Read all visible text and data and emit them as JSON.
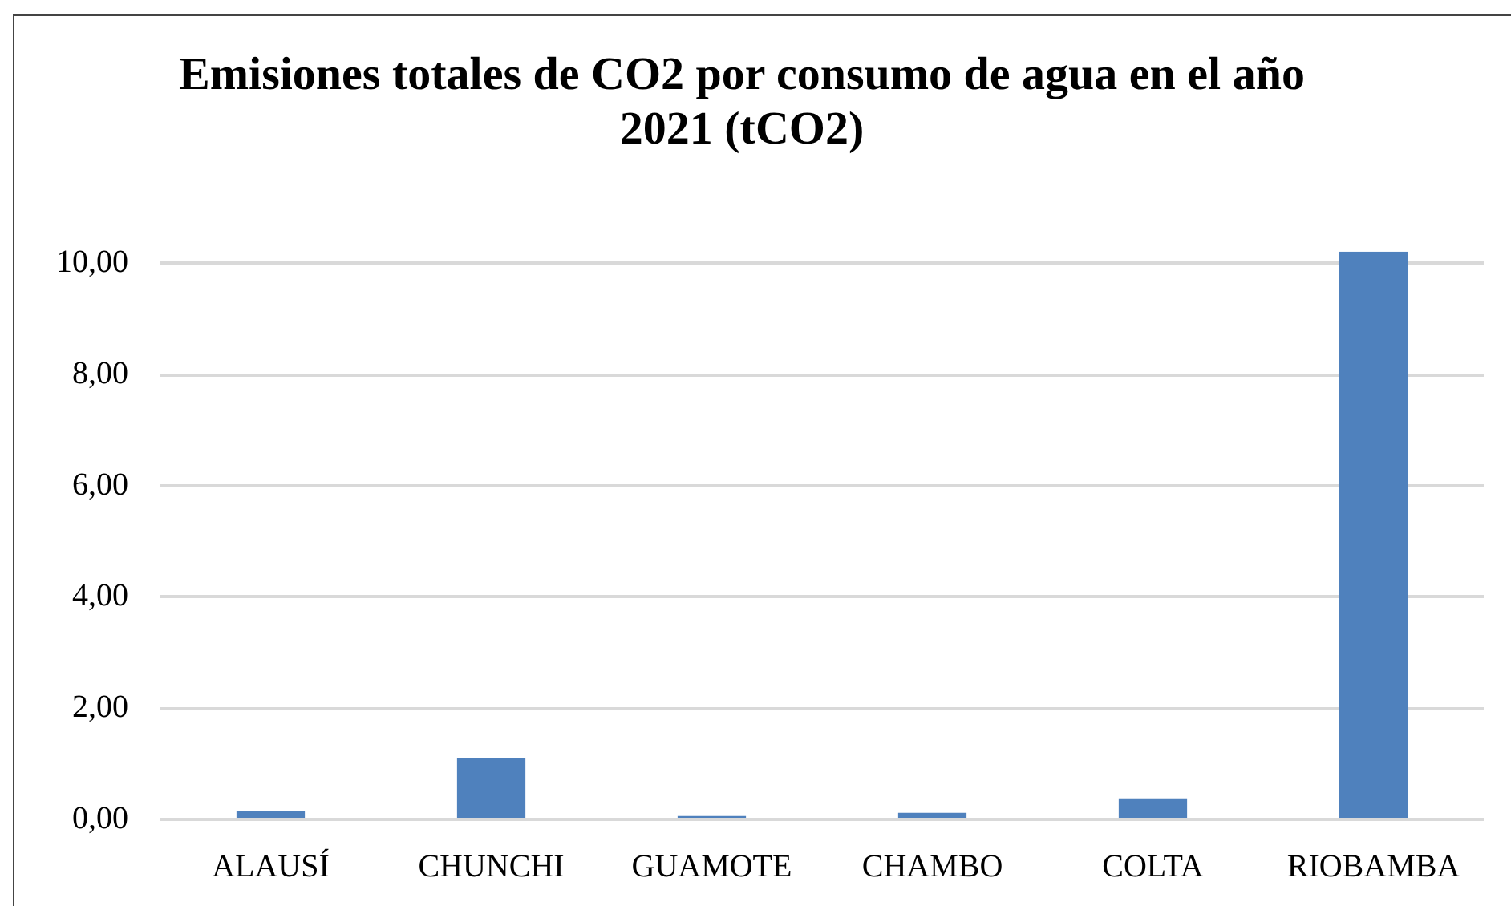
{
  "chart_data": {
    "type": "bar",
    "title": "Emisiones totales de CO2 por consumo de agua en el año 2021 (tCO2)",
    "categories": [
      "ALAUSÍ",
      "CHUNCHI",
      "GUAMOTE",
      "CHAMBO",
      "COLTA",
      "RIOBAMBA"
    ],
    "values": [
      0.16,
      1.11,
      0.06,
      0.12,
      0.38,
      10.22
    ],
    "color": "#4f81bd",
    "ylim": [
      0,
      10.22
    ],
    "yticks": [
      {
        "value": 0,
        "label": "0,00"
      },
      {
        "value": 2,
        "label": "2,00"
      },
      {
        "value": 4,
        "label": "4,00"
      },
      {
        "value": 6,
        "label": "6,00"
      },
      {
        "value": 8,
        "label": "8,00"
      },
      {
        "value": 10,
        "label": "10,00"
      }
    ],
    "grid": "y"
  }
}
